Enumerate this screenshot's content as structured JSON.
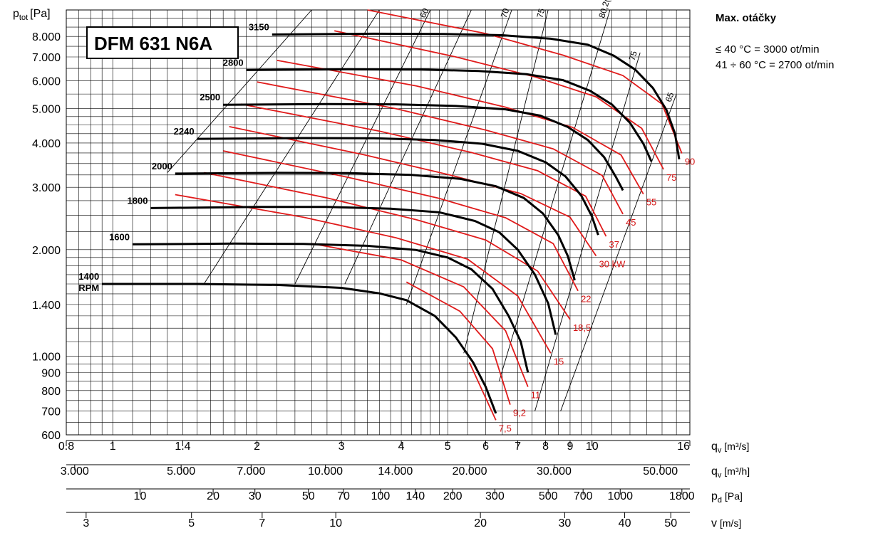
{
  "chart_data": {
    "type": "line",
    "title": "DFM 631 N6A",
    "ylabel": "p",
    "ylabel_sub": "tot",
    "ylabel_unit": "[Pa]",
    "y_scale": "log",
    "ylim": [
      600,
      9500
    ],
    "y_ticks": [
      {
        "v": 600,
        "label": "600"
      },
      {
        "v": 700,
        "label": "700"
      },
      {
        "v": 800,
        "label": "800"
      },
      {
        "v": 900,
        "label": "900"
      },
      {
        "v": 1000,
        "label": "1.000"
      },
      {
        "v": 1400,
        "label": "1.400"
      },
      {
        "v": 2000,
        "label": "2.000"
      },
      {
        "v": 3000,
        "label": "3.000"
      },
      {
        "v": 4000,
        "label": "4.000"
      },
      {
        "v": 5000,
        "label": "5.000"
      },
      {
        "v": 6000,
        "label": "6.000"
      },
      {
        "v": 7000,
        "label": "7.000"
      },
      {
        "v": 8000,
        "label": "8.000"
      }
    ],
    "x_scale": "log",
    "xlim": [
      0.8,
      16
    ],
    "axes": [
      {
        "label": "q",
        "sub": "v",
        "unit": "[m³/s]",
        "ticks": [
          {
            "q": 0.8,
            "label": "0.8"
          },
          {
            "q": 1,
            "label": "1"
          },
          {
            "q": 1.4,
            "label": "1.4"
          },
          {
            "q": 2,
            "label": "2"
          },
          {
            "q": 3,
            "label": "3"
          },
          {
            "q": 4,
            "label": "4"
          },
          {
            "q": 5,
            "label": "5"
          },
          {
            "q": 6,
            "label": "6"
          },
          {
            "q": 7,
            "label": "7"
          },
          {
            "q": 8,
            "label": "8"
          },
          {
            "q": 9,
            "label": "9"
          },
          {
            "q": 10,
            "label": "10"
          },
          {
            "q": 16,
            "label": "16"
          }
        ]
      },
      {
        "label": "q",
        "sub": "v",
        "unit": "[m³/h]",
        "ticks": [
          {
            "q": 0.833,
            "label": "3.000"
          },
          {
            "q": 1.389,
            "label": "5.000"
          },
          {
            "q": 1.944,
            "label": "7.000"
          },
          {
            "q": 2.778,
            "label": "10.000"
          },
          {
            "q": 3.889,
            "label": "14.000"
          },
          {
            "q": 5.556,
            "label": "20.000"
          },
          {
            "q": 8.333,
            "label": "30.000"
          },
          {
            "q": 13.889,
            "label": "50.000"
          }
        ]
      },
      {
        "label": "p",
        "sub": "d",
        "unit": "[Pa]",
        "ticks": [
          {
            "q": 1.14,
            "label": "10"
          },
          {
            "q": 1.62,
            "label": "20"
          },
          {
            "q": 1.98,
            "label": "30"
          },
          {
            "q": 2.56,
            "label": "50"
          },
          {
            "q": 3.03,
            "label": "70"
          },
          {
            "q": 3.62,
            "label": "100"
          },
          {
            "q": 4.28,
            "label": "140"
          },
          {
            "q": 5.12,
            "label": "200"
          },
          {
            "q": 6.27,
            "label": "300"
          },
          {
            "q": 8.1,
            "label": "500"
          },
          {
            "q": 9.58,
            "label": "700"
          },
          {
            "q": 11.45,
            "label": "1000"
          },
          {
            "q": 15.4,
            "label": "1800"
          }
        ]
      },
      {
        "label": "v",
        "sub": "",
        "unit": "[m/s]",
        "ticks": [
          {
            "q": 0.88,
            "label": "3"
          },
          {
            "q": 1.46,
            "label": "5"
          },
          {
            "q": 2.05,
            "label": "7"
          },
          {
            "q": 2.92,
            "label": "10"
          },
          {
            "q": 5.85,
            "label": "20"
          },
          {
            "q": 8.77,
            "label": "30"
          },
          {
            "q": 11.7,
            "label": "40"
          },
          {
            "q": 14.6,
            "label": "50"
          }
        ]
      }
    ],
    "series": [
      {
        "name": "1400",
        "suffix": "RPM",
        "points": [
          [
            0.95,
            1600
          ],
          [
            1.5,
            1600
          ],
          [
            2.2,
            1590
          ],
          [
            3.0,
            1560
          ],
          [
            3.6,
            1505
          ],
          [
            4.1,
            1440
          ],
          [
            4.7,
            1300
          ],
          [
            5.2,
            1130
          ],
          [
            5.65,
            960
          ],
          [
            6.0,
            820
          ],
          [
            6.3,
            690
          ]
        ]
      },
      {
        "name": "1600",
        "suffix": "",
        "points": [
          [
            1.1,
            2070
          ],
          [
            1.8,
            2080
          ],
          [
            2.5,
            2075
          ],
          [
            3.4,
            2050
          ],
          [
            4.3,
            1995
          ],
          [
            5.0,
            1900
          ],
          [
            5.6,
            1760
          ],
          [
            6.2,
            1550
          ],
          [
            6.7,
            1300
          ],
          [
            7.1,
            1100
          ],
          [
            7.35,
            900
          ]
        ]
      },
      {
        "name": "1800",
        "suffix": "",
        "points": [
          [
            1.2,
            2620
          ],
          [
            2.0,
            2640
          ],
          [
            2.8,
            2640
          ],
          [
            3.8,
            2610
          ],
          [
            4.8,
            2550
          ],
          [
            5.7,
            2410
          ],
          [
            6.4,
            2240
          ],
          [
            7.0,
            2000
          ],
          [
            7.6,
            1700
          ],
          [
            8.1,
            1410
          ],
          [
            8.4,
            1150
          ]
        ]
      },
      {
        "name": "2000",
        "suffix": "",
        "points": [
          [
            1.35,
            3280
          ],
          [
            2.2,
            3295
          ],
          [
            3.1,
            3290
          ],
          [
            4.2,
            3250
          ],
          [
            5.3,
            3170
          ],
          [
            6.3,
            3020
          ],
          [
            7.2,
            2800
          ],
          [
            7.9,
            2530
          ],
          [
            8.5,
            2200
          ],
          [
            8.9,
            1920
          ],
          [
            9.2,
            1640
          ]
        ]
      },
      {
        "name": "2240",
        "suffix": "",
        "points": [
          [
            1.5,
            4110
          ],
          [
            2.5,
            4130
          ],
          [
            3.5,
            4125
          ],
          [
            4.7,
            4080
          ],
          [
            5.9,
            3980
          ],
          [
            7.0,
            3800
          ],
          [
            8.0,
            3530
          ],
          [
            8.8,
            3220
          ],
          [
            9.5,
            2840
          ],
          [
            10.0,
            2480
          ],
          [
            10.3,
            2200
          ]
        ]
      },
      {
        "name": "2500",
        "suffix": "",
        "points": [
          [
            1.7,
            5130
          ],
          [
            2.8,
            5150
          ],
          [
            3.9,
            5145
          ],
          [
            5.2,
            5090
          ],
          [
            6.6,
            4980
          ],
          [
            7.8,
            4780
          ],
          [
            8.9,
            4440
          ],
          [
            9.8,
            4080
          ],
          [
            10.6,
            3650
          ],
          [
            11.2,
            3220
          ],
          [
            11.6,
            2940
          ]
        ]
      },
      {
        "name": "2800",
        "suffix": "",
        "points": [
          [
            1.9,
            6430
          ],
          [
            3.1,
            6460
          ],
          [
            4.4,
            6450
          ],
          [
            5.8,
            6390
          ],
          [
            7.3,
            6260
          ],
          [
            8.7,
            6020
          ],
          [
            9.9,
            5620
          ],
          [
            11.0,
            5140
          ],
          [
            12.0,
            4560
          ],
          [
            12.8,
            3980
          ],
          [
            13.3,
            3550
          ]
        ]
      },
      {
        "name": "3150",
        "suffix": "",
        "points": [
          [
            2.15,
            8100
          ],
          [
            3.5,
            8140
          ],
          [
            4.9,
            8130
          ],
          [
            6.5,
            8060
          ],
          [
            8.2,
            7880
          ],
          [
            9.8,
            7580
          ],
          [
            11.1,
            7060
          ],
          [
            12.3,
            6450
          ],
          [
            13.4,
            5720
          ],
          [
            14.3,
            4960
          ],
          [
            14.9,
            4250
          ],
          [
            15.2,
            3600
          ]
        ]
      }
    ],
    "power_lines": [
      {
        "label": "7,5",
        "points": [
          [
            5.55,
            960
          ],
          [
            6.3,
            660
          ]
        ]
      },
      {
        "label": "9,2",
        "points": [
          [
            4.1,
            1620
          ],
          [
            5.3,
            1340
          ],
          [
            6.2,
            1050
          ],
          [
            6.75,
            730
          ]
        ]
      },
      {
        "label": "11",
        "points": [
          [
            2.6,
            2080
          ],
          [
            4.0,
            1870
          ],
          [
            5.4,
            1570
          ],
          [
            6.6,
            1180
          ],
          [
            7.35,
            820
          ]
        ]
      },
      {
        "label": "15",
        "points": [
          [
            1.35,
            2860
          ],
          [
            2.5,
            2470
          ],
          [
            3.9,
            2160
          ],
          [
            5.5,
            1880
          ],
          [
            7.0,
            1480
          ],
          [
            8.2,
            1020
          ]
        ]
      },
      {
        "label": "18,5",
        "points": [
          [
            1.55,
            3300
          ],
          [
            2.8,
            2800
          ],
          [
            4.3,
            2430
          ],
          [
            6.0,
            2130
          ],
          [
            7.7,
            1740
          ],
          [
            9.0,
            1270
          ]
        ]
      },
      {
        "label": "22",
        "points": [
          [
            1.7,
            3800
          ],
          [
            3.1,
            3200
          ],
          [
            4.8,
            2790
          ],
          [
            6.6,
            2460
          ],
          [
            8.3,
            2080
          ],
          [
            9.35,
            1530
          ]
        ]
      },
      {
        "label": "30 kW",
        "points": [
          [
            1.75,
            4450
          ],
          [
            3.3,
            3720
          ],
          [
            5.1,
            3240
          ],
          [
            7.1,
            2880
          ],
          [
            9.0,
            2470
          ],
          [
            10.2,
            1920
          ]
        ]
      },
      {
        "label": "37",
        "points": [
          [
            1.85,
            5150
          ],
          [
            3.6,
            4320
          ],
          [
            5.6,
            3760
          ],
          [
            7.7,
            3340
          ],
          [
            9.7,
            2830
          ],
          [
            10.7,
            2180
          ]
        ]
      },
      {
        "label": "45",
        "points": [
          [
            2.0,
            5950
          ],
          [
            3.9,
            5000
          ],
          [
            6.0,
            4350
          ],
          [
            8.3,
            3850
          ],
          [
            10.5,
            3240
          ],
          [
            11.6,
            2520
          ]
        ]
      },
      {
        "label": "55",
        "points": [
          [
            2.2,
            6850
          ],
          [
            4.3,
            5800
          ],
          [
            6.6,
            5050
          ],
          [
            9.1,
            4430
          ],
          [
            11.5,
            3700
          ],
          [
            12.8,
            2870
          ]
        ]
      },
      {
        "label": "75",
        "points": [
          [
            2.9,
            8300
          ],
          [
            5.2,
            7000
          ],
          [
            7.6,
            6150
          ],
          [
            10.2,
            5400
          ],
          [
            12.7,
            4400
          ],
          [
            14.1,
            3370
          ]
        ]
      },
      {
        "label": "90",
        "points": [
          [
            3.4,
            9500
          ],
          [
            6.0,
            8150
          ],
          [
            8.7,
            7080
          ],
          [
            11.6,
            6200
          ],
          [
            14.0,
            5150
          ],
          [
            15.4,
            3740
          ]
        ]
      }
    ],
    "efficiency_lines": [
      {
        "label": "",
        "from": [
          1.3,
          3300
        ],
        "to": [
          2.6,
          9500
        ]
      },
      {
        "label": "",
        "from": [
          1.55,
          1600
        ],
        "to": [
          3.6,
          9500
        ]
      },
      {
        "label": "60",
        "from": [
          2.4,
          1600
        ],
        "to": [
          4.6,
          9500
        ]
      },
      {
        "label": "",
        "from": [
          3.05,
          1600
        ],
        "to": [
          5.6,
          9500
        ]
      },
      {
        "label": "70",
        "from": [
          4.1,
          1400
        ],
        "to": [
          6.8,
          9500
        ]
      },
      {
        "label": "75",
        "from": [
          5.4,
          1020
        ],
        "to": [
          8.1,
          9500
        ]
      },
      {
        "label": "80,2(η%)",
        "from": [
          6.4,
          850
        ],
        "to": [
          10.9,
          9500
        ]
      },
      {
        "label": "75",
        "from": [
          7.6,
          700
        ],
        "to": [
          12.6,
          7200
        ]
      },
      {
        "label": "65",
        "from": [
          8.6,
          700
        ],
        "to": [
          15.0,
          5500
        ]
      }
    ],
    "annotations": {
      "heading": "Max. otáčky",
      "line1": "≤ 40 °C = 3000 ot/min",
      "line2": "41 ÷ 60 °C = 2700 ot/min"
    },
    "colors": {
      "fan_curve": "#000000",
      "power_curve": "#e01b1b",
      "efficiency_line": "#000000",
      "grid": "#000000",
      "power_label": "#d41414"
    }
  }
}
